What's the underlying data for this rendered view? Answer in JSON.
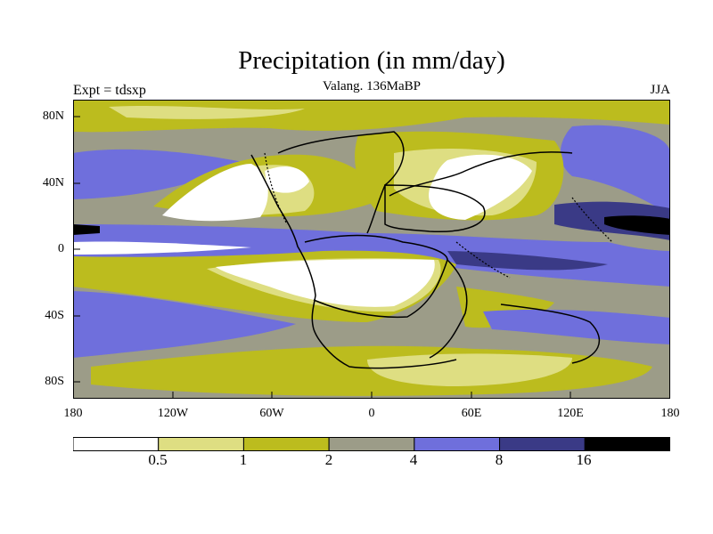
{
  "header": {
    "title": "Precipitation (in mm/day)",
    "subtitle": "Valang. 136MaBP",
    "left_label": "Expt = tdsxp",
    "right_label": "JJA"
  },
  "axes": {
    "lat_labels": [
      "80N",
      "40N",
      "0",
      "40S",
      "80S"
    ],
    "lon_labels": [
      "180",
      "120W",
      "60W",
      "0",
      "60E",
      "120E",
      "180"
    ]
  },
  "colorbar": {
    "level_labels": [
      "0.5",
      "1",
      "2",
      "4",
      "8",
      "16"
    ],
    "colors": [
      "#ffffff",
      "#dede82",
      "#bcbc1e",
      "#9c9c88",
      "#6f6fdc",
      "#3a3a86",
      "#000000"
    ]
  }
}
